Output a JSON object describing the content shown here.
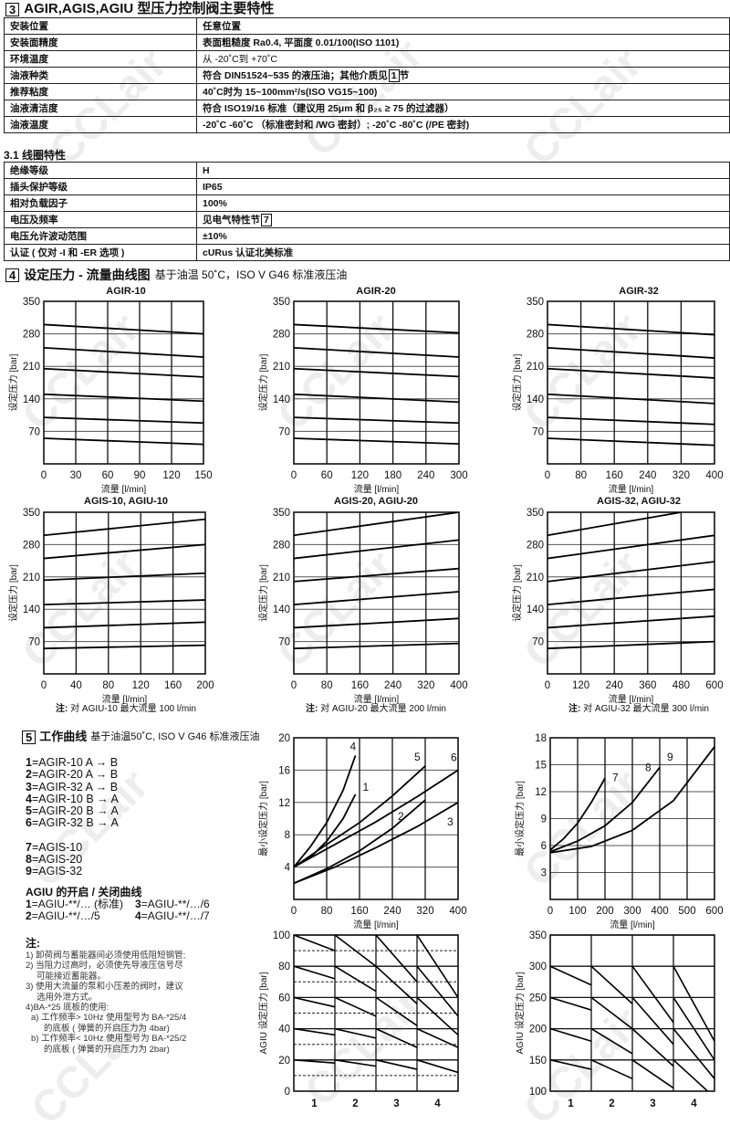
{
  "watermark": "CCLair",
  "section3": {
    "num": "3",
    "title": "AGIR,AGIS,AGIU 型压力控制阀主要特性",
    "rows": [
      {
        "key": "安装位置",
        "value": "任意位置"
      },
      {
        "key": "安装面精度",
        "value": "表面粗糙度 Ra0.4, 平面度 0.01/100(ISO 1101)"
      },
      {
        "key": "环境温度",
        "value": "从 -20˚C到 +70˚C"
      },
      {
        "key": "油液种类",
        "value": "符合 DIN51524~535 的液压油；其他介质见",
        "ref": "1",
        "suffix": "节"
      },
      {
        "key": "推荐粘度",
        "value": "40˚C时为 15~100mm²/s(ISO VG15~100)"
      },
      {
        "key": "油液清洁度",
        "value": "符合 ISO19/16 标准（建议用 25μm 和 β₂₅ ≥ 75 的过滤器）"
      },
      {
        "key": "油液温度",
        "value": "-20˚C -60˚C （标准密封和 /WG 密封）; -20˚C -80˚C (/PE 密封)"
      }
    ]
  },
  "section31": {
    "title": "3.1 线圈特性",
    "rows": [
      {
        "key": "绝缘等级",
        "value": "H"
      },
      {
        "key": "插头保护等级",
        "value": "IP65"
      },
      {
        "key": "相对负载因子",
        "value": "100%"
      },
      {
        "key": "电压及频率",
        "value": "见电气特性节",
        "ref": "7"
      },
      {
        "key": "电压允许波动范围",
        "value": "±10%"
      },
      {
        "key": "认证 ( 仅对 -I 和 -ER 选项 )",
        "value": "cURus 认证北美标准"
      }
    ]
  },
  "section4": {
    "num": "4",
    "title": "设定压力 - 流量曲线图",
    "subtitle": "基于油温 50˚C，ISO V G46 标准液压油",
    "notes": [
      {
        "label": "注:",
        "text": "对 AGIU-10 最大流量 100 l/min"
      },
      {
        "label": "注:",
        "text": "对 AGIU-20 最大流量 200 l/min"
      },
      {
        "label": "注:",
        "text": "对 AGIU-32 最大流量 300 l/min"
      }
    ]
  },
  "section5": {
    "num": "5",
    "title": "工作曲线",
    "subtitle": "基于油温50˚C, ISO V G46 标准液压油",
    "legend": [
      {
        "n": "1",
        "text": "=AGIR-10 A → B"
      },
      {
        "n": "2",
        "text": "=AGIR-20 A → B"
      },
      {
        "n": "3",
        "text": "=AGIR-32 A → B"
      },
      {
        "n": "4",
        "text": "=AGIR-10 B → A"
      },
      {
        "n": "5",
        "text": "=AGIR-20 B → A"
      },
      {
        "n": "6",
        "text": "=AGIR-32 B → A"
      },
      {
        "n": "7",
        "text": "=AGIS-10"
      },
      {
        "n": "8",
        "text": "=AGIS-20"
      },
      {
        "n": "9",
        "text": "=AGIS-32"
      }
    ],
    "agiu_title": "AGIU 的开启 / 关闭曲线",
    "agiu_legend": [
      {
        "n": "1",
        "text": "=AGIU-**/… (标准)"
      },
      {
        "n": "3",
        "text": "=AGIU-**/…/6"
      },
      {
        "n": "2",
        "text": "=AGIU-**/…/5"
      },
      {
        "n": "4",
        "text": "=AGIU-**/…/7"
      }
    ],
    "notes_title": "注:",
    "notes": [
      "1) 卸荷阀与蓄能器间必须使用低阻短钢管;",
      "2) 当阻力过高时，必须使先导液压信号尽",
      "    可能接近蓄能器。",
      "3) 使用大流量的泵和小压差的阀时，建议",
      "    选用外泄方式。",
      "4)BA-*25 底板的使用:",
      "  a) 工作频率> 10Hz 使用型号为 BA-*25/4",
      "      的底板 ( 弹簧的开启压力为 4bar)",
      "  b) 工作频率< 10Hz 使用型号为 BA-*25/2",
      "      的底板 ( 弹簧的开启压力为 2bar)"
    ]
  },
  "chart_data": [
    {
      "type": "line",
      "title": "AGIR-10",
      "xlabel": "流量  [l/min]",
      "ylabel": "设定压力  [bar]",
      "xlim": [
        0,
        150
      ],
      "ylim": [
        0,
        350
      ],
      "xticks": [
        0,
        30,
        60,
        90,
        120,
        150
      ],
      "yticks": [
        70,
        140,
        210,
        280,
        350
      ],
      "grid": true,
      "series": [
        {
          "points": [
            [
              0,
              300
            ],
            [
              150,
              280
            ]
          ]
        },
        {
          "points": [
            [
              0,
              250
            ],
            [
              150,
              230
            ]
          ]
        },
        {
          "points": [
            [
              0,
              205
            ],
            [
              150,
              187
            ]
          ]
        },
        {
          "points": [
            [
              0,
              150
            ],
            [
              150,
              135
            ]
          ]
        },
        {
          "points": [
            [
              0,
              100
            ],
            [
              150,
              88
            ]
          ]
        },
        {
          "points": [
            [
              0,
              55
            ],
            [
              150,
              42
            ]
          ]
        }
      ]
    },
    {
      "type": "line",
      "title": "AGIR-20",
      "xlabel": "流量  [l/min]",
      "ylabel": "设定压力  [bar]",
      "xlim": [
        0,
        300
      ],
      "ylim": [
        0,
        350
      ],
      "xticks": [
        0,
        60,
        120,
        180,
        240,
        300
      ],
      "yticks": [
        70,
        140,
        210,
        280,
        350
      ],
      "grid": true,
      "series": [
        {
          "points": [
            [
              0,
              300
            ],
            [
              300,
              282
            ]
          ]
        },
        {
          "points": [
            [
              0,
              250
            ],
            [
              300,
              230
            ]
          ]
        },
        {
          "points": [
            [
              0,
              205
            ],
            [
              300,
              188
            ]
          ]
        },
        {
          "points": [
            [
              0,
              150
            ],
            [
              300,
              133
            ]
          ]
        },
        {
          "points": [
            [
              0,
              100
            ],
            [
              300,
              88
            ]
          ]
        },
        {
          "points": [
            [
              0,
              55
            ],
            [
              300,
              43
            ]
          ]
        }
      ]
    },
    {
      "type": "line",
      "title": "AGIR-32",
      "xlabel": "流量  [l/min]",
      "ylabel": "设定压力  [bar]",
      "xlim": [
        0,
        400
      ],
      "ylim": [
        0,
        350
      ],
      "xticks": [
        0,
        80,
        160,
        240,
        320,
        400
      ],
      "yticks": [
        70,
        140,
        210,
        280,
        350
      ],
      "grid": true,
      "series": [
        {
          "points": [
            [
              0,
              300
            ],
            [
              400,
              278
            ]
          ]
        },
        {
          "points": [
            [
              0,
              250
            ],
            [
              400,
              228
            ]
          ]
        },
        {
          "points": [
            [
              0,
              205
            ],
            [
              400,
              185
            ]
          ]
        },
        {
          "points": [
            [
              0,
              150
            ],
            [
              400,
              130
            ]
          ]
        },
        {
          "points": [
            [
              0,
              100
            ],
            [
              400,
              85
            ]
          ]
        },
        {
          "points": [
            [
              0,
              55
            ],
            [
              400,
              40
            ]
          ]
        }
      ]
    },
    {
      "type": "line",
      "title": "AGIS-10, AGIU-10",
      "xlabel": "流量  [l/min]",
      "ylabel": "设定压力  [bar]",
      "xlim": [
        0,
        200
      ],
      "ylim": [
        0,
        350
      ],
      "xticks": [
        0,
        40,
        80,
        120,
        160,
        200
      ],
      "yticks": [
        70,
        140,
        210,
        280,
        350
      ],
      "grid": true,
      "series": [
        {
          "points": [
            [
              0,
              300
            ],
            [
              200,
              335
            ]
          ]
        },
        {
          "points": [
            [
              0,
              250
            ],
            [
              200,
              280
            ]
          ]
        },
        {
          "points": [
            [
              0,
              203
            ],
            [
              200,
              218
            ]
          ]
        },
        {
          "points": [
            [
              0,
              150
            ],
            [
              200,
              160
            ]
          ]
        },
        {
          "points": [
            [
              0,
              100
            ],
            [
              200,
              112
            ]
          ]
        },
        {
          "points": [
            [
              0,
              55
            ],
            [
              200,
              62
            ]
          ]
        }
      ]
    },
    {
      "type": "line",
      "title": "AGIS-20, AGIU-20",
      "xlabel": "流量  [l/min]",
      "ylabel": "设定压力  [bar]",
      "xlim": [
        0,
        400
      ],
      "ylim": [
        0,
        350
      ],
      "xticks": [
        0,
        80,
        160,
        240,
        320,
        400
      ],
      "yticks": [
        70,
        140,
        210,
        280,
        350
      ],
      "grid": true,
      "series": [
        {
          "points": [
            [
              0,
              300
            ],
            [
              400,
              350
            ]
          ]
        },
        {
          "points": [
            [
              0,
              250
            ],
            [
              400,
              290
            ]
          ]
        },
        {
          "points": [
            [
              0,
              200
            ],
            [
              400,
              228
            ]
          ]
        },
        {
          "points": [
            [
              0,
              150
            ],
            [
              400,
              178
            ]
          ]
        },
        {
          "points": [
            [
              0,
              100
            ],
            [
              400,
              120
            ]
          ]
        },
        {
          "points": [
            [
              0,
              55
            ],
            [
              400,
              66
            ]
          ]
        }
      ]
    },
    {
      "type": "line",
      "title": "AGIS-32, AGIU-32",
      "xlabel": "流量  [l/min]",
      "ylabel": "设定压力  [bar]",
      "xlim": [
        0,
        600
      ],
      "ylim": [
        0,
        350
      ],
      "xticks": [
        0,
        120,
        240,
        360,
        480,
        600
      ],
      "yticks": [
        70,
        140,
        210,
        280,
        350
      ],
      "grid": true,
      "series": [
        {
          "points": [
            [
              0,
              300
            ],
            [
              480,
              350
            ]
          ]
        },
        {
          "points": [
            [
              0,
              250
            ],
            [
              600,
              300
            ]
          ]
        },
        {
          "points": [
            [
              0,
              200
            ],
            [
              600,
              243
            ]
          ]
        },
        {
          "points": [
            [
              0,
              150
            ],
            [
              600,
              183
            ]
          ]
        },
        {
          "points": [
            [
              0,
              100
            ],
            [
              600,
              125
            ]
          ]
        },
        {
          "points": [
            [
              0,
              55
            ],
            [
              600,
              70
            ]
          ]
        }
      ]
    },
    {
      "type": "line",
      "title": "",
      "xlabel": "流量  [l/min]",
      "ylabel": "最小设定压力  [bar]",
      "xlim": [
        0,
        400
      ],
      "ylim": [
        0,
        20
      ],
      "xticks": [
        0,
        80,
        160,
        240,
        320,
        400
      ],
      "yticks": [
        4,
        8,
        12,
        16,
        20
      ],
      "grid": true,
      "series": [
        {
          "name": "4",
          "points": [
            [
              0,
              4
            ],
            [
              40,
              6.5
            ],
            [
              80,
              9.5
            ],
            [
              120,
              13.5
            ],
            [
              150,
              17.8
            ]
          ]
        },
        {
          "name": "1",
          "points": [
            [
              0,
              4
            ],
            [
              40,
              5.2
            ],
            [
              80,
              7.2
            ],
            [
              120,
              10
            ],
            [
              150,
              13
            ]
          ]
        },
        {
          "name": "5",
          "points": [
            [
              0,
              4
            ],
            [
              80,
              6.8
            ],
            [
              160,
              9.5
            ],
            [
              240,
              12.8
            ],
            [
              320,
              16.5
            ]
          ]
        },
        {
          "name": "6",
          "points": [
            [
              0,
              4
            ],
            [
              100,
              6.8
            ],
            [
              200,
              9.6
            ],
            [
              300,
              12.7
            ],
            [
              400,
              16
            ]
          ]
        },
        {
          "name": "2",
          "points": [
            [
              0,
              2
            ],
            [
              80,
              3.8
            ],
            [
              160,
              6
            ],
            [
              240,
              8.8
            ],
            [
              320,
              12.3
            ]
          ]
        },
        {
          "name": "3",
          "points": [
            [
              0,
              2
            ],
            [
              100,
              4
            ],
            [
              200,
              6.4
            ],
            [
              300,
              9
            ],
            [
              400,
              12
            ]
          ]
        }
      ]
    },
    {
      "type": "line",
      "title": "",
      "xlabel": "流量  [l/min]",
      "ylabel": "最小设定压力  [bar]",
      "xlim": [
        0,
        600
      ],
      "ylim": [
        0,
        18
      ],
      "xticks": [
        0,
        100,
        200,
        300,
        400,
        500,
        600
      ],
      "yticks": [
        3,
        6,
        9,
        12,
        15,
        18
      ],
      "grid": true,
      "series": [
        {
          "name": "7",
          "points": [
            [
              0,
              5.5
            ],
            [
              50,
              6.8
            ],
            [
              100,
              8.5
            ],
            [
              150,
              10.8
            ],
            [
              200,
              13.5
            ]
          ]
        },
        {
          "name": "8",
          "points": [
            [
              0,
              5.3
            ],
            [
              100,
              6.5
            ],
            [
              200,
              8.2
            ],
            [
              300,
              10.8
            ],
            [
              400,
              14.7
            ]
          ]
        },
        {
          "name": "9",
          "points": [
            [
              0,
              5.2
            ],
            [
              150,
              5.9
            ],
            [
              300,
              7.7
            ],
            [
              450,
              11
            ],
            [
              600,
              17
            ]
          ]
        }
      ]
    },
    {
      "type": "line",
      "title": "",
      "xlabel": "",
      "ylabel": "AGIU 设定压力  [bar]",
      "categories": [
        "1",
        "2",
        "3",
        "4"
      ],
      "ylim": [
        0,
        100
      ],
      "yticks": [
        20,
        40,
        60,
        80,
        100
      ],
      "dashed_yticks": [
        10,
        30,
        50,
        70,
        90
      ],
      "grid": true,
      "segments": [
        {
          "category": "1",
          "from": [
            100,
            80,
            60,
            40,
            20
          ],
          "to": [
            90,
            72,
            54,
            36,
            18
          ]
        },
        {
          "category": "2",
          "from": [
            100,
            80,
            60,
            40,
            20
          ],
          "to": [
            80,
            64,
            48,
            34,
            16
          ]
        },
        {
          "category": "3",
          "from": [
            100,
            80,
            60,
            40,
            20
          ],
          "to": [
            70,
            56,
            42,
            28,
            14
          ]
        },
        {
          "category": "4",
          "from": [
            100,
            80,
            60,
            40,
            20
          ],
          "to": [
            60,
            48,
            36,
            28,
            12
          ]
        }
      ]
    },
    {
      "type": "line",
      "title": "",
      "xlabel": "",
      "ylabel": "AGIU 设定压力  [bar]",
      "categories": [
        "1",
        "2",
        "3",
        "4"
      ],
      "ylim": [
        100,
        350
      ],
      "yticks": [
        150,
        200,
        250,
        300,
        350
      ],
      "grid": true,
      "segments": [
        {
          "category": "1",
          "from": [
            300,
            250,
            200,
            150
          ],
          "to": [
            270,
            230,
            180,
            135
          ]
        },
        {
          "category": "2",
          "from": [
            300,
            250,
            200,
            150
          ],
          "to": [
            240,
            200,
            160,
            120
          ]
        },
        {
          "category": "3",
          "from": [
            300,
            250,
            200,
            150
          ],
          "to": [
            210,
            175,
            140,
            105
          ]
        },
        {
          "category": "4",
          "from": [
            300,
            250,
            200,
            150
          ],
          "to": [
            180,
            150,
            120,
            90
          ]
        }
      ]
    }
  ]
}
